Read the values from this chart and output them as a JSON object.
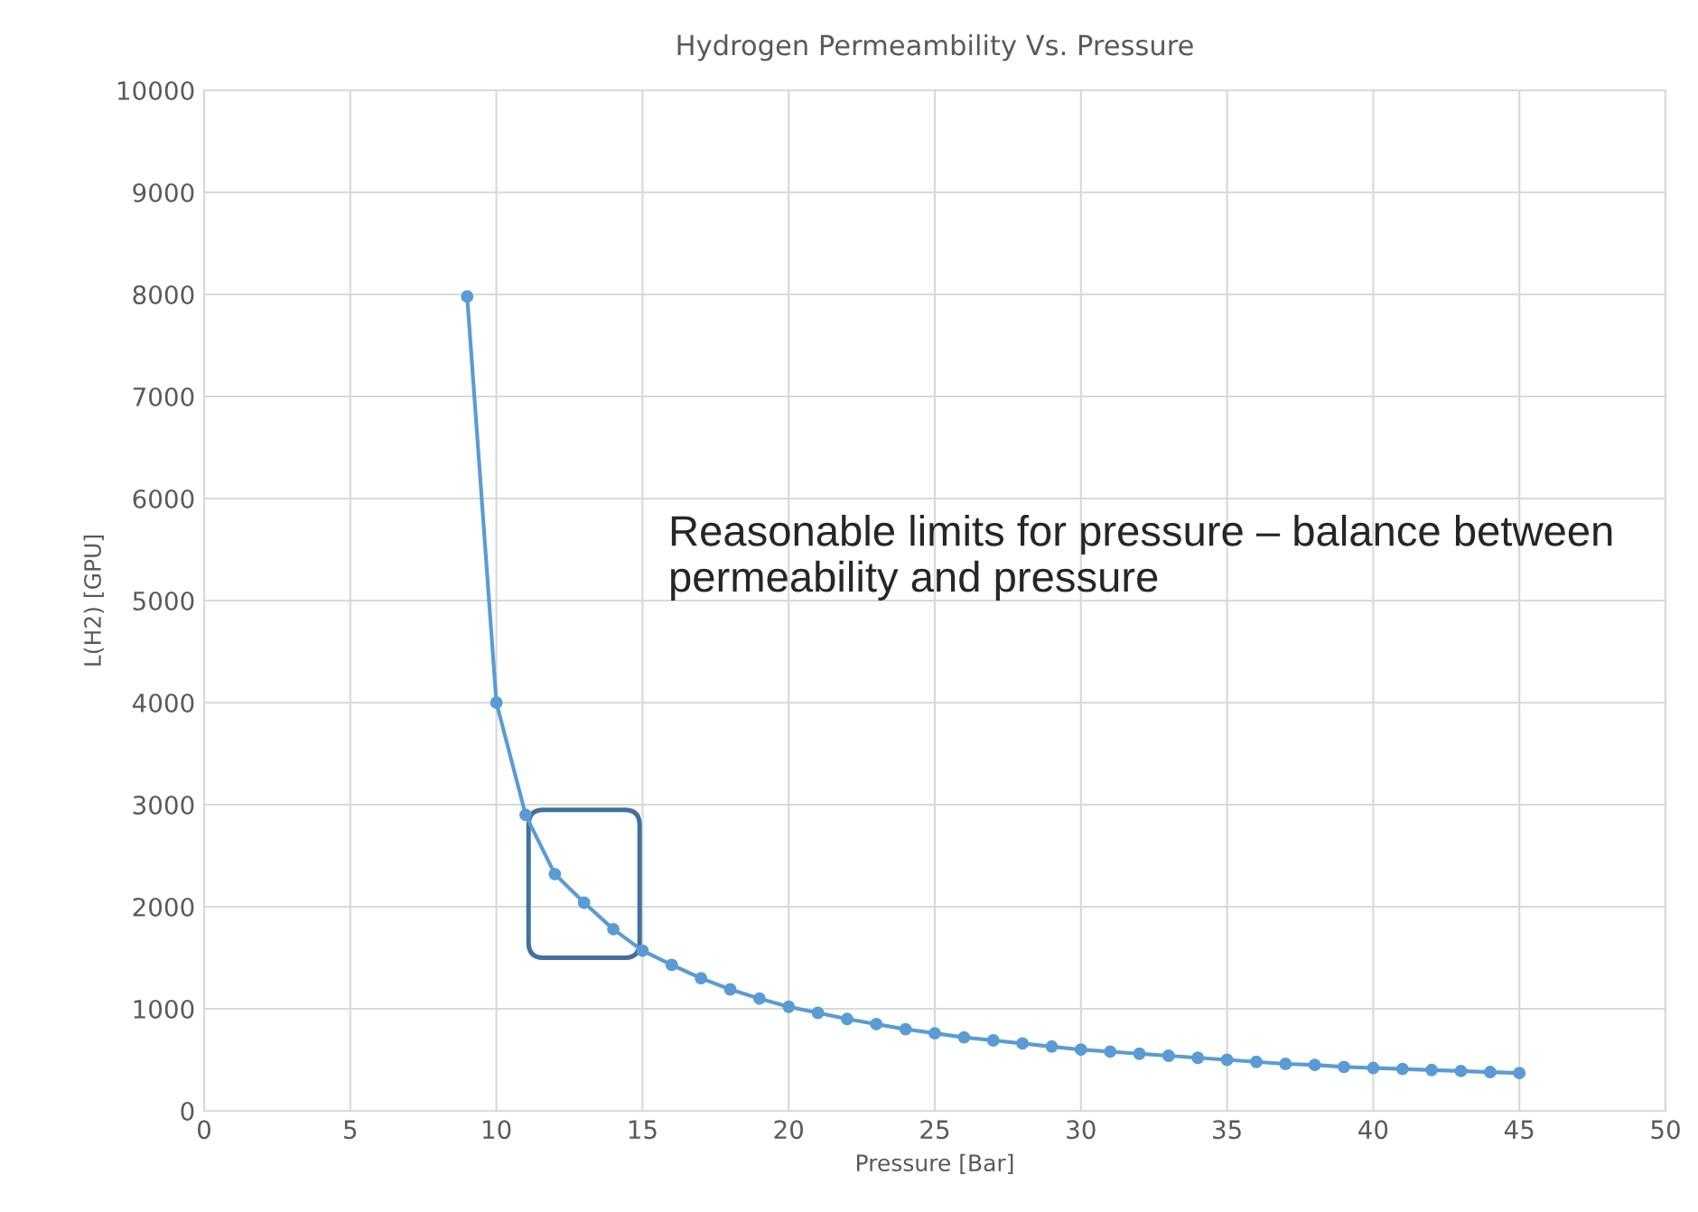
{
  "chart_data": {
    "type": "line",
    "title": "Hydrogen Permeambility Vs. Pressure",
    "xlabel": "Pressure [Bar]",
    "ylabel": "L(H2) [GPU]",
    "x": [
      9,
      10,
      11,
      12,
      13,
      14,
      15,
      16,
      17,
      18,
      19,
      20,
      21,
      22,
      23,
      24,
      25,
      26,
      27,
      28,
      29,
      30,
      31,
      32,
      33,
      34,
      35,
      36,
      37,
      38,
      39,
      40,
      41,
      42,
      43,
      44,
      45
    ],
    "series": [
      {
        "color": "#5b9bd5",
        "values": [
          7980,
          4000,
          2900,
          2320,
          2040,
          1780,
          1570,
          1430,
          1300,
          1190,
          1100,
          1020,
          960,
          900,
          850,
          800,
          760,
          720,
          690,
          660,
          630,
          600,
          580,
          560,
          540,
          520,
          500,
          480,
          460,
          450,
          430,
          420,
          410,
          400,
          390,
          380,
          370
        ]
      }
    ],
    "xlim": [
      0,
      50
    ],
    "xticks": [
      0,
      5,
      10,
      15,
      20,
      25,
      30,
      35,
      40,
      45,
      50
    ],
    "ylim": [
      0,
      10000
    ],
    "yticks": [
      0,
      1000,
      2000,
      3000,
      4000,
      5000,
      6000,
      7000,
      8000,
      9000,
      10000
    ],
    "grid": true,
    "marker": "circle",
    "line_style": "solid",
    "annotations": [
      "Reasonable limits for pressure – balance between permeability and pressure"
    ]
  }
}
